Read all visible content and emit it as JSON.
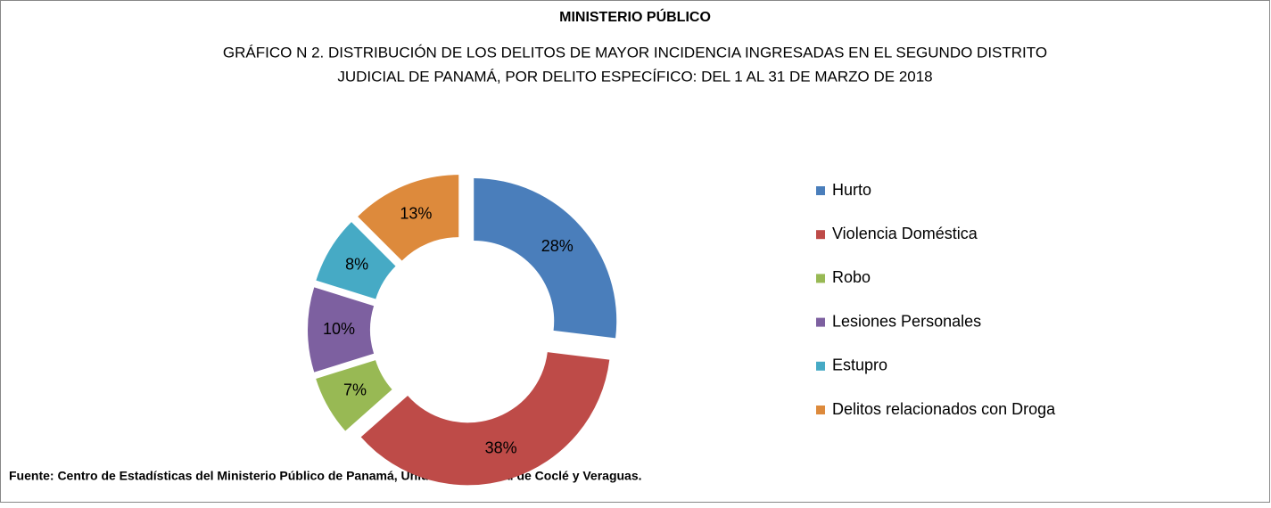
{
  "chart_data": {
    "type": "donut",
    "title": "MINISTERIO PÚBLICO",
    "subtitle": [
      "GRÁFICO N 2. DISTRIBUCIÓN DE LOS DELITOS DE MAYOR INCIDENCIA INGRESADAS EN EL  SEGUNDO DISTRITO",
      "JUDICIAL DE PANAMÁ, POR DELITO ESPECÍFICO: DEL 1 AL  31 DE MARZO  DE 2018"
    ],
    "categories": [
      "Hurto",
      "Violencia Doméstica",
      "Robo",
      "Lesiones Personales",
      "Estupro",
      "Delitos relacionados con Droga"
    ],
    "values": [
      28,
      38,
      7,
      10,
      8,
      13
    ],
    "value_labels": [
      "28%",
      "38%",
      "7%",
      "10%",
      "8%",
      "13%"
    ],
    "colors": [
      "#4a7ebb",
      "#be4b48",
      "#98b954",
      "#7d60a0",
      "#46aac5",
      "#dd8a3c"
    ],
    "legend": "right",
    "source": "Fuente: Centro de Estadísticas  del Ministerio Público de Panamá, Unidades Regional de Coclé y Veraguas."
  }
}
